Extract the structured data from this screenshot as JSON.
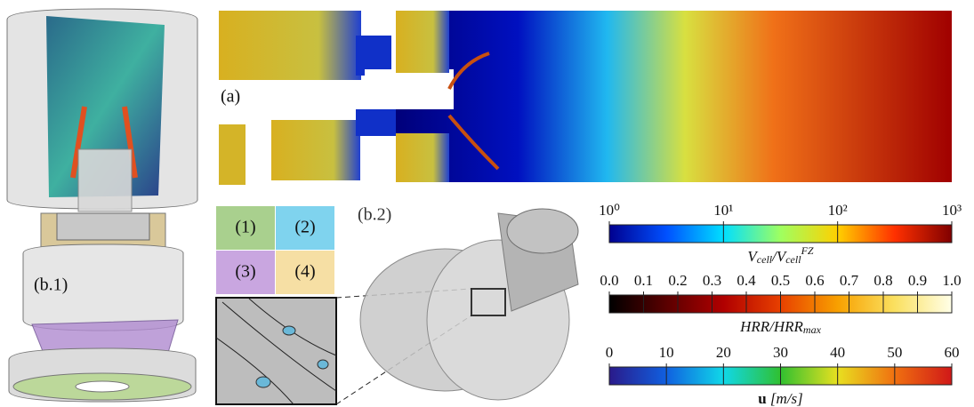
{
  "panels": {
    "a": "(a)",
    "b1": "(b.1)",
    "b2": "(b.2)"
  },
  "legend": [
    {
      "label": "(1)",
      "color": "#a9d08e"
    },
    {
      "label": "(2)",
      "color": "#7fd3ee"
    },
    {
      "label": "(3)",
      "color": "#c9a6e0"
    },
    {
      "label": "(4)",
      "color": "#f6dfa4"
    }
  ],
  "colorbars": [
    {
      "label": [
        "V",
        "cell",
        "/V",
        "cell",
        "FZ"
      ],
      "scale": "log",
      "lim": [
        1,
        1000
      ],
      "ticks": [
        {
          "value": 1,
          "label": "10⁰"
        },
        {
          "value": 10,
          "label": "10¹"
        },
        {
          "value": 100,
          "label": "10²"
        },
        {
          "value": 1000,
          "label": "10³"
        }
      ],
      "colors": [
        "#00008f",
        "#0050ff",
        "#00dfff",
        "#9fff60",
        "#ffd000",
        "#ff3000",
        "#800000"
      ]
    },
    {
      "label": [
        "HRR/HRR",
        "max"
      ],
      "scale": "linear",
      "lim": [
        0,
        1
      ],
      "ticks": [
        {
          "value": 0,
          "label": "0.0"
        },
        0.1,
        0.2,
        0.3,
        0.4,
        0.5,
        0.6,
        0.7,
        0.8,
        0.9,
        {
          "value": 1,
          "label": "1.0"
        }
      ],
      "colors": [
        "#000000",
        "#5a0000",
        "#b00000",
        "#e84000",
        "#f8a000",
        "#fae060",
        "#ffffe8"
      ]
    },
    {
      "label": [
        "u",
        " [m/s]"
      ],
      "scale": "linear",
      "lim": [
        0,
        60
      ],
      "ticks": [
        0,
        10,
        20,
        30,
        40,
        50,
        60
      ],
      "colors": [
        "#2a1a8a",
        "#1060e0",
        "#10d8e8",
        "#30c030",
        "#e8e020",
        "#f07010",
        "#d01818"
      ]
    }
  ]
}
